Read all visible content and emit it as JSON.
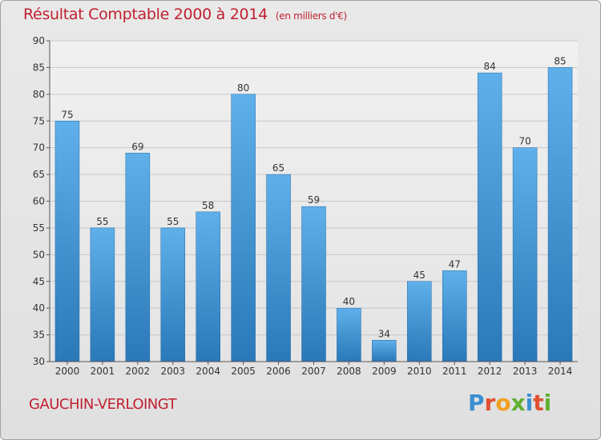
{
  "chart_data": {
    "type": "bar",
    "title": "Résultat Comptable 2000 à 2014",
    "subtitle": "(en milliers d'€)",
    "categories": [
      "2000",
      "2001",
      "2002",
      "2003",
      "2004",
      "2005",
      "2006",
      "2007",
      "2008",
      "2009",
      "2010",
      "2011",
      "2012",
      "2013",
      "2014"
    ],
    "values": [
      75,
      55,
      69,
      55,
      58,
      80,
      65,
      59,
      40,
      34,
      45,
      47,
      84,
      70,
      85
    ],
    "ylim": [
      30,
      90
    ],
    "yticks": [
      30,
      35,
      40,
      45,
      50,
      55,
      60,
      65,
      70,
      75,
      80,
      85,
      90
    ],
    "xlabel": "",
    "ylabel": "",
    "grid": true,
    "bar_color_top": "#5fb0ea",
    "bar_color_bottom": "#2a78b8"
  },
  "footer": {
    "city": "GAUCHIN-VERLOINGT",
    "logo_letters": [
      "P",
      "r",
      "o",
      "x",
      "i",
      "t",
      "i"
    ],
    "logo_colors": [
      "#3b8fd0",
      "#e05030",
      "#f0a020",
      "#60b030",
      "#3b8fd0",
      "#e05030",
      "#60b030"
    ]
  },
  "colors": {
    "title": "#c02030",
    "grid": "#c8c8c8"
  }
}
